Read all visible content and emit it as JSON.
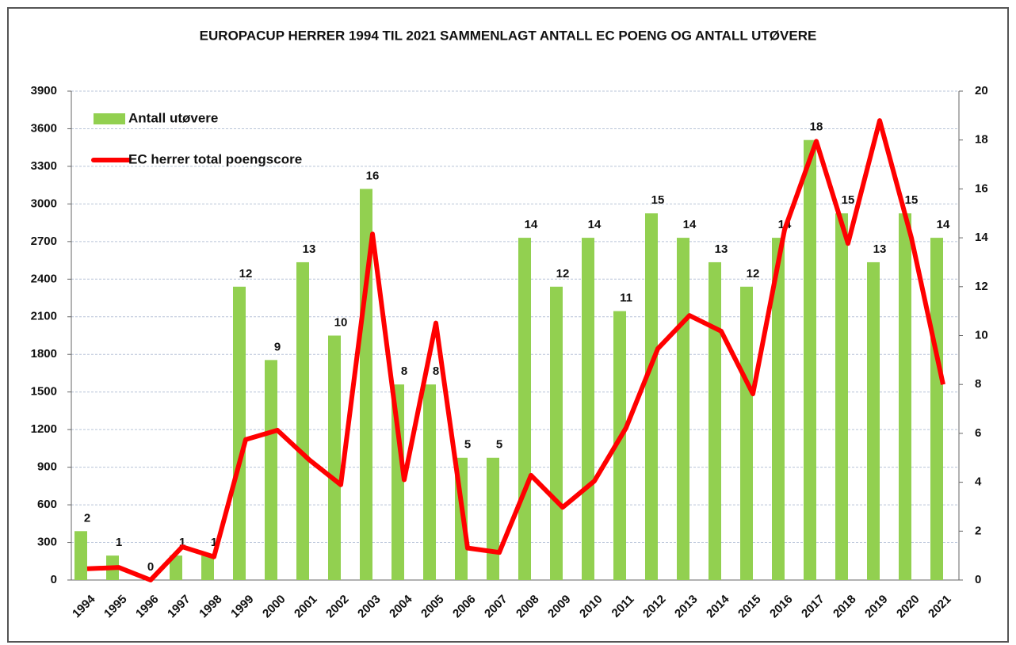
{
  "chart_data": {
    "type": "bar_line",
    "title": "EUROPACUP HERRER 1994 TIL 2021 SAMMENLAGT ANTALL EC POENG OG ANTALL UTØVERE",
    "categories": [
      "1994",
      "1995",
      "1996",
      "1997",
      "1998",
      "1999",
      "2000",
      "2001",
      "2002",
      "2003",
      "2004",
      "2005",
      "2006",
      "2007",
      "2008",
      "2009",
      "2010",
      "2011",
      "2012",
      "2013",
      "2014",
      "2015",
      "2016",
      "2017",
      "2018",
      "2019",
      "2020",
      "2021"
    ],
    "series": [
      {
        "name": "Antall utøvere",
        "type": "bar",
        "axis": "y2",
        "color": "#92d050",
        "values": [
          2,
          1,
          0,
          1,
          1,
          12,
          9,
          13,
          10,
          16,
          8,
          8,
          5,
          5,
          14,
          12,
          14,
          11,
          15,
          14,
          13,
          12,
          14,
          18,
          15,
          13,
          15,
          14
        ]
      },
      {
        "name": "EC herrer total poengscore",
        "type": "line",
        "axis": "y",
        "color": "#ff0000",
        "values": [
          90,
          100,
          0,
          265,
          185,
          1120,
          1195,
          960,
          760,
          2760,
          800,
          2050,
          255,
          220,
          835,
          580,
          790,
          1215,
          1845,
          2110,
          1985,
          1485,
          2795,
          3500,
          2685,
          3665,
          2730,
          1560
        ]
      }
    ],
    "ylim": [
      0,
      3900
    ],
    "yticks": [
      0,
      300,
      600,
      900,
      1200,
      1500,
      1800,
      2100,
      2400,
      2700,
      3000,
      3300,
      3600,
      3900
    ],
    "y2lim": [
      0,
      20
    ],
    "y2ticks": [
      0,
      2,
      4,
      6,
      8,
      10,
      12,
      14,
      16,
      18,
      20
    ],
    "grid": true,
    "legend": "upper left"
  }
}
